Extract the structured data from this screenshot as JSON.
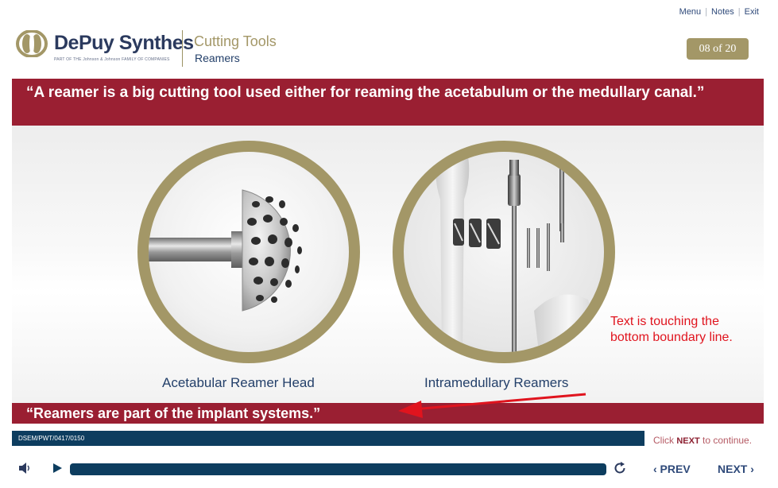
{
  "top_links": {
    "menu": "Menu",
    "notes": "Notes",
    "exit": "Exit",
    "separator": "|"
  },
  "brand": {
    "name": "DePuy Synthes",
    "tagline": "PART OF THE Johnson & Johnson FAMILY OF COMPANIES",
    "mark_color": "#a39767"
  },
  "module": {
    "title": "Cutting Tools",
    "subtitle": "Reamers"
  },
  "page_indicator": "08 of 20",
  "quote_top": "“A reamer is a big cutting tool used either for reaming the acetabulum or the medullary canal.”",
  "images": [
    {
      "caption": "Acetabular Reamer Head",
      "icon": "acetabular-reamer-image"
    },
    {
      "caption": "Intramedullary Reamers",
      "icon": "intramedullary-reamers-image"
    }
  ],
  "annotation": "Text is touching the bottom boundary line.",
  "quote_bottom": "“Reamers are part of the implant systems.”",
  "course_code": "DSEM/PWT/0417/0150",
  "hint": {
    "prefix": "Click ",
    "keyword": "NEXT",
    "suffix": " to continue."
  },
  "player": {
    "volume_icon": "speaker-icon",
    "play_icon": "play-icon",
    "replay_icon": "replay-icon",
    "prev_label": "‹ PREV",
    "next_label": "NEXT ›"
  },
  "colors": {
    "accent_gold": "#a39767",
    "banner_red": "#9a1f32",
    "navy": "#0d3d5f",
    "annotation_red": "#e0141e"
  }
}
